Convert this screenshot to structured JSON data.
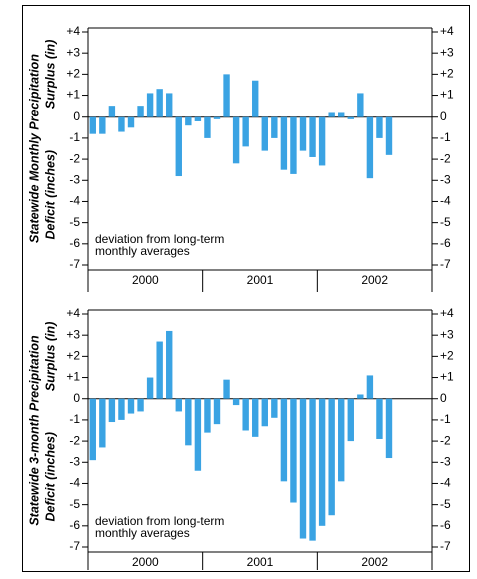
{
  "chart_data": [
    {
      "type": "bar",
      "y_label": "Statewide Monthly Precipitation",
      "surplus_label": "Surplus (in)",
      "deficit_label": "Deficit (inches)",
      "annotation": [
        "deviation from long-term",
        "monthly averages"
      ],
      "categories": [
        null,
        null,
        null,
        null,
        null,
        null,
        "2000",
        null,
        null,
        null,
        null,
        null,
        null,
        null,
        null,
        null,
        null,
        null,
        "2001",
        null,
        null,
        null,
        null,
        null,
        null,
        null,
        null,
        null,
        null,
        null,
        "2002",
        null
      ],
      "values": [
        -0.8,
        -0.8,
        0.5,
        -0.7,
        -0.5,
        0.5,
        1.1,
        1.3,
        1.1,
        -2.8,
        -0.4,
        -0.2,
        -1.0,
        -0.1,
        2.0,
        -2.2,
        -1.4,
        1.7,
        -1.6,
        -1.0,
        -2.5,
        -2.7,
        -1.6,
        -1.9,
        -2.3,
        0.2,
        0.2,
        -0.1,
        1.1,
        -2.9,
        -1.0,
        -1.8
      ],
      "color": "#3aa3e3",
      "ylim": [
        -7,
        4
      ],
      "yticks": [
        {
          "value": 4,
          "label": "+4"
        },
        {
          "value": 3,
          "label": "+3"
        },
        {
          "value": 2,
          "label": "+2"
        },
        {
          "value": 1,
          "label": "+1"
        },
        0,
        -1,
        -2,
        -3,
        -4,
        -5,
        -6,
        -7
      ]
    },
    {
      "type": "bar",
      "y_label": "Statewide 3-month Precipitation",
      "surplus_label": "Surplus (in)",
      "deficit_label": "Deficit (inches)",
      "annotation": [
        "deviation from long-term",
        "monthly averages"
      ],
      "categories": [
        null,
        null,
        null,
        null,
        null,
        null,
        "2000",
        null,
        null,
        null,
        null,
        null,
        null,
        null,
        null,
        null,
        null,
        null,
        "2001",
        null,
        null,
        null,
        null,
        null,
        null,
        null,
        null,
        null,
        null,
        null,
        "2002",
        null
      ],
      "values": [
        -2.9,
        -2.3,
        -1.1,
        -1.0,
        -0.7,
        -0.6,
        1.0,
        2.7,
        3.2,
        -0.6,
        -2.2,
        -3.4,
        -1.6,
        -1.2,
        0.9,
        -0.3,
        -1.5,
        -1.8,
        -1.3,
        -0.9,
        -3.9,
        -4.9,
        -6.6,
        -6.7,
        -6.0,
        -5.5,
        -3.9,
        -2.0,
        0.2,
        1.1,
        -1.9,
        -2.8
      ],
      "color": "#3aa3e3",
      "ylim": [
        -7,
        4
      ],
      "yticks": [
        {
          "value": 4,
          "label": "+4"
        },
        {
          "value": 3,
          "label": "+3"
        },
        {
          "value": 2,
          "label": "+2"
        },
        {
          "value": 1,
          "label": "+1"
        },
        0,
        -1,
        -2,
        -3,
        -4,
        -5,
        -6,
        -7
      ]
    }
  ]
}
